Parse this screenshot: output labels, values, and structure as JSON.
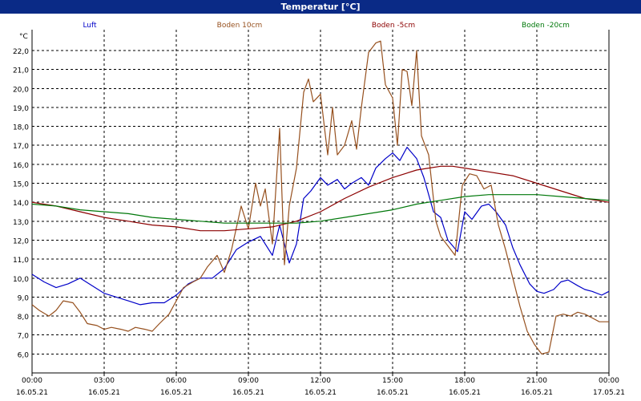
{
  "chart_data": {
    "type": "line",
    "title": "Temperatur [°C]",
    "ylabel": "°C",
    "xlabel": "",
    "ylim": [
      5.0,
      23.1
    ],
    "xlim": [
      0,
      24
    ],
    "grid": true,
    "legend_position": "top",
    "y_ticks": [
      "6,0",
      "7,0",
      "8,0",
      "9,0",
      "10,0",
      "11,0",
      "12,0",
      "13,0",
      "14,0",
      "15,0",
      "16,0",
      "17,0",
      "18,0",
      "19,0",
      "20,0",
      "21,0",
      "22,0"
    ],
    "x_ticks": [
      {
        "time": "00:00",
        "date": "16.05.21"
      },
      {
        "time": "03:00",
        "date": "16.05.21"
      },
      {
        "time": "06:00",
        "date": "16.05.21"
      },
      {
        "time": "09:00",
        "date": "16.05.21"
      },
      {
        "time": "12:00",
        "date": "16.05.21"
      },
      {
        "time": "15:00",
        "date": "16.05.21"
      },
      {
        "time": "18:00",
        "date": "16.05.21"
      },
      {
        "time": "21:00",
        "date": "16.05.21"
      },
      {
        "time": "00:00",
        "date": "17.05.21"
      }
    ],
    "x_unit": "hours since 16.05.21 00:00",
    "series": [
      {
        "name": "Luft",
        "color": "#0000c8",
        "x": [
          0,
          0.5,
          1,
          1.5,
          2,
          2.5,
          3,
          3.5,
          4,
          4.5,
          5,
          5.5,
          6,
          6.5,
          7,
          7.5,
          8,
          8.5,
          9,
          9.5,
          10,
          10.3,
          10.7,
          11,
          11.3,
          11.6,
          12,
          12.3,
          12.7,
          13,
          13.3,
          13.7,
          14,
          14.3,
          14.7,
          15,
          15.3,
          15.6,
          16,
          16.3,
          16.7,
          17,
          17.3,
          17.7,
          18,
          18.3,
          18.7,
          19,
          19.3,
          19.7,
          20,
          20.3,
          20.7,
          21,
          21.3,
          21.7,
          22,
          22.3,
          22.7,
          23,
          23.3,
          23.7,
          24
        ],
        "values": [
          10.2,
          9.8,
          9.5,
          9.7,
          10.0,
          9.6,
          9.2,
          9.0,
          8.8,
          8.6,
          8.7,
          8.7,
          9.1,
          9.7,
          10.0,
          10.0,
          10.5,
          11.5,
          11.9,
          12.2,
          11.2,
          12.8,
          10.8,
          11.8,
          14.2,
          14.6,
          15.3,
          14.9,
          15.2,
          14.7,
          15.0,
          15.3,
          14.9,
          15.8,
          16.3,
          16.6,
          16.2,
          16.9,
          16.3,
          15.3,
          13.5,
          13.2,
          12.0,
          11.4,
          13.5,
          13.1,
          13.8,
          13.9,
          13.5,
          12.8,
          11.6,
          10.7,
          9.7,
          9.3,
          9.2,
          9.4,
          9.8,
          9.9,
          9.6,
          9.4,
          9.3,
          9.1,
          9.3
        ]
      },
      {
        "name": "Boden 10cm",
        "color": "#96501e",
        "x": [
          0,
          0.3,
          0.7,
          1,
          1.3,
          1.7,
          2,
          2.3,
          2.7,
          3,
          3.3,
          3.7,
          4,
          4.3,
          4.7,
          5,
          5.3,
          5.7,
          6,
          6.3,
          6.7,
          7,
          7.3,
          7.7,
          8,
          8.3,
          8.7,
          9,
          9.3,
          9.5,
          9.7,
          10,
          10.3,
          10.5,
          10.7,
          11,
          11.3,
          11.5,
          11.7,
          12,
          12.3,
          12.5,
          12.7,
          13,
          13.3,
          13.5,
          13.7,
          14,
          14.3,
          14.5,
          14.7,
          15,
          15.2,
          15.4,
          15.6,
          15.8,
          16,
          16.2,
          16.5,
          16.8,
          17,
          17.3,
          17.6,
          17.9,
          18.2,
          18.5,
          18.8,
          19.1,
          19.4,
          19.7,
          20,
          20.3,
          20.6,
          20.9,
          21.2,
          21.5,
          21.8,
          22.1,
          22.4,
          22.7,
          23,
          23.3,
          23.6,
          24
        ],
        "values": [
          8.6,
          8.3,
          8.0,
          8.3,
          8.8,
          8.7,
          8.2,
          7.6,
          7.5,
          7.3,
          7.4,
          7.3,
          7.2,
          7.4,
          7.3,
          7.2,
          7.6,
          8.1,
          8.8,
          9.5,
          9.8,
          10.0,
          10.6,
          11.2,
          10.3,
          11.5,
          13.8,
          12.6,
          15.0,
          13.8,
          14.7,
          11.8,
          17.9,
          10.7,
          13.8,
          15.8,
          19.8,
          20.5,
          19.3,
          19.7,
          16.5,
          19.0,
          16.5,
          17.0,
          18.3,
          16.8,
          19.0,
          21.9,
          22.4,
          22.5,
          20.2,
          19.5,
          17.0,
          21.0,
          20.9,
          19.1,
          22.0,
          17.5,
          16.5,
          13.0,
          12.2,
          11.7,
          11.2,
          14.9,
          15.5,
          15.4,
          14.7,
          14.9,
          12.8,
          11.5,
          10.0,
          8.5,
          7.2,
          6.5,
          6.0,
          6.1,
          8.0,
          8.1,
          8.0,
          8.2,
          8.1,
          7.9,
          7.7,
          7.7
        ]
      },
      {
        "name": "Boden -5cm",
        "color": "#8c0000",
        "x": [
          0,
          1,
          2,
          3,
          4,
          5,
          6,
          7,
          8,
          9,
          10,
          11,
          12,
          13,
          14,
          15,
          16,
          16.5,
          17,
          17.5,
          18,
          19,
          20,
          21,
          22,
          23,
          24
        ],
        "values": [
          14.0,
          13.8,
          13.5,
          13.2,
          13.0,
          12.8,
          12.7,
          12.5,
          12.5,
          12.6,
          12.7,
          13.0,
          13.5,
          14.2,
          14.8,
          15.3,
          15.7,
          15.8,
          15.9,
          15.9,
          15.8,
          15.6,
          15.4,
          15.0,
          14.6,
          14.2,
          14.0
        ]
      },
      {
        "name": "Boden -20cm",
        "color": "#00780a",
        "x": [
          0,
          1,
          2,
          3,
          4,
          5,
          6,
          7,
          8,
          9,
          10,
          11,
          12,
          13,
          14,
          15,
          16,
          17,
          18,
          19,
          20,
          21,
          22,
          23,
          24
        ],
        "values": [
          13.9,
          13.8,
          13.6,
          13.5,
          13.4,
          13.2,
          13.1,
          13.0,
          12.9,
          12.9,
          12.9,
          12.9,
          13.0,
          13.2,
          13.4,
          13.6,
          13.9,
          14.1,
          14.3,
          14.4,
          14.4,
          14.4,
          14.3,
          14.2,
          14.1
        ]
      }
    ]
  }
}
